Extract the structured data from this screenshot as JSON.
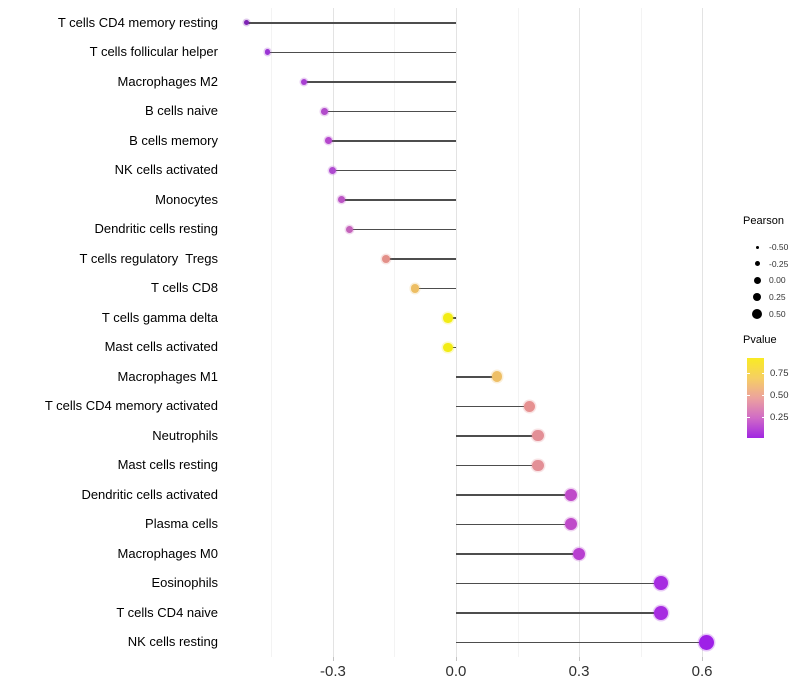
{
  "chart_data": {
    "type": "lollipop",
    "orientation": "horizontal",
    "title": "",
    "xlabel": "",
    "ylabel": "",
    "xlim": [
      -0.551,
      0.712
    ],
    "grid": "vertical-only",
    "legend_position": "right",
    "x_ticks": [
      {
        "value": -0.3,
        "label": "-0.3"
      },
      {
        "value": 0.0,
        "label": "0.0"
      },
      {
        "value": 0.3,
        "label": "0.3"
      },
      {
        "value": 0.6,
        "label": "0.6"
      }
    ],
    "x_minor_ticks": [
      -0.45,
      -0.15,
      0.15,
      0.45
    ],
    "rows": [
      {
        "label": "T cells CD4 memory resting",
        "pearson": -0.51,
        "pvalue_color": "#7e22b5"
      },
      {
        "label": "T cells follicular helper",
        "pearson": -0.46,
        "pvalue_color": "#9a34d4"
      },
      {
        "label": "Macrophages M2",
        "pearson": -0.37,
        "pvalue_color": "#a83fd2"
      },
      {
        "label": "B cells naive",
        "pearson": -0.32,
        "pvalue_color": "#b24ccb"
      },
      {
        "label": "B cells memory",
        "pearson": -0.31,
        "pvalue_color": "#b548cd"
      },
      {
        "label": "NK cells activated",
        "pearson": -0.3,
        "pvalue_color": "#af4ad0"
      },
      {
        "label": "Monocytes",
        "pearson": -0.28,
        "pvalue_color": "#bb54c4"
      },
      {
        "label": "Dendritic cells resting",
        "pearson": -0.26,
        "pvalue_color": "#c462ba"
      },
      {
        "label": "T cells regulatory  Tregs",
        "pearson": -0.17,
        "pvalue_color": "#e39089"
      },
      {
        "label": "T cells CD8",
        "pearson": -0.1,
        "pvalue_color": "#edbe63"
      },
      {
        "label": "T cells gamma delta",
        "pearson": -0.02,
        "pvalue_color": "#f2ec15"
      },
      {
        "label": "Mast cells activated",
        "pearson": -0.02,
        "pvalue_color": "#f2ec15"
      },
      {
        "label": "Macrophages M1",
        "pearson": 0.1,
        "pvalue_color": "#eebf66"
      },
      {
        "label": "T cells CD4 memory activated",
        "pearson": 0.18,
        "pvalue_color": "#e69090"
      },
      {
        "label": "Neutrophils",
        "pearson": 0.2,
        "pvalue_color": "#e38f96"
      },
      {
        "label": "Mast cells resting",
        "pearson": 0.2,
        "pvalue_color": "#e38f96"
      },
      {
        "label": "Dendritic cells activated",
        "pearson": 0.28,
        "pvalue_color": "#bf4ac9"
      },
      {
        "label": "Plasma cells",
        "pearson": 0.28,
        "pvalue_color": "#bf4ac9"
      },
      {
        "label": "Macrophages M0",
        "pearson": 0.3,
        "pvalue_color": "#b840d0"
      },
      {
        "label": "Eosinophils",
        "pearson": 0.5,
        "pvalue_color": "#a72ce1"
      },
      {
        "label": "T cells CD4 naive",
        "pearson": 0.5,
        "pvalue_color": "#a72ce1"
      },
      {
        "label": "NK cells resting",
        "pearson": 0.61,
        "pvalue_color": "#9e20e7"
      }
    ],
    "size_legend": {
      "title": "Pearson",
      "items": [
        {
          "label": "-0.50",
          "diameter": 3
        },
        {
          "label": "-0.25",
          "diameter": 5
        },
        {
          "label": "0.00",
          "diameter": 7
        },
        {
          "label": "0.25",
          "diameter": 8.5
        },
        {
          "label": "0.50",
          "diameter": 10
        }
      ]
    },
    "color_legend": {
      "title": "Pvalue",
      "labels": [
        "0.75",
        "0.50",
        "0.25"
      ],
      "gradient_top_to_bottom": [
        "#f9eb23",
        "#f6cf63",
        "#eca29e",
        "#d06bc6",
        "#a126e2"
      ]
    }
  },
  "colors": {
    "stem": "#4d4d4d",
    "grid_major": "#e3e3e3",
    "grid_minor": "#f3f3f3",
    "axis_tick": "#c2c2c2",
    "axis_text": "#303030",
    "label_text": "#000000",
    "legend_dot": "#000000"
  }
}
